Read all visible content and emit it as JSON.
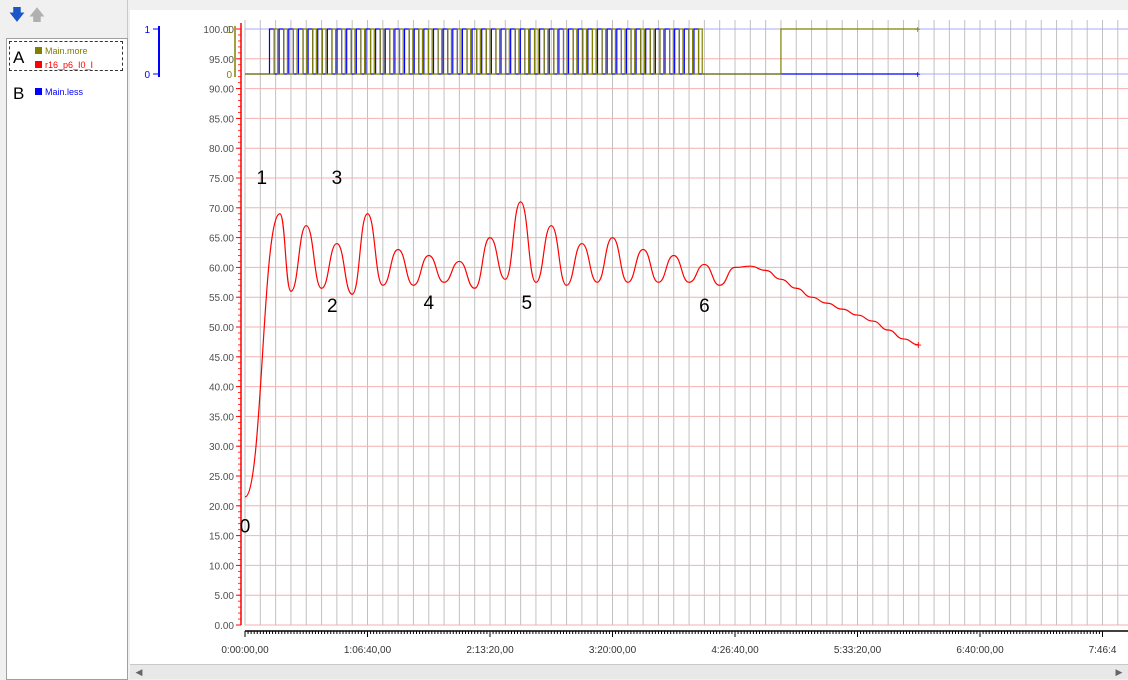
{
  "legend": {
    "items": [
      {
        "label": "Main.more",
        "color": "#808000"
      },
      {
        "label": "r16_p6_I0_I",
        "color": "#ff0000"
      },
      {
        "label": "Main.less",
        "color": "#0000ff"
      }
    ],
    "tag_a": "A",
    "tag_b": "B",
    "icons": [
      "arrow-down-icon",
      "arrow-up-icon"
    ]
  },
  "chart_data": {
    "type": "line",
    "digital_axis": {
      "ticks": [
        "0",
        "1"
      ],
      "colors": [
        "#0000ff",
        "#808000"
      ]
    },
    "y_axis": {
      "ylim": [
        0,
        100
      ],
      "step": 5,
      "color": "#ff0000"
    },
    "y_top": {
      "ticks": [
        "90.00",
        "95.00",
        "100.00"
      ]
    },
    "x_axis": {
      "tick_labels": [
        "0:00:00,00",
        "1:06:40,00",
        "2:13:20,00",
        "3:20:00,00",
        "4:26:40,00",
        "5:33:20,00",
        "6:40:00,00",
        "7:46:4"
      ],
      "tick_values_sec": [
        0,
        4000,
        8000,
        12000,
        16000,
        20000,
        24000,
        28000
      ],
      "xlim_sec": [
        0,
        28000
      ]
    },
    "series": [
      {
        "name": "r16_p6_I0_I",
        "color": "#ff0000",
        "x_sec": [
          0,
          1140,
          1500,
          2000,
          2500,
          3000,
          3500,
          4000,
          4500,
          5000,
          5500,
          6000,
          6500,
          7000,
          7500,
          8000,
          8500,
          9000,
          9500,
          10000,
          10500,
          11000,
          11500,
          12000,
          12500,
          13000,
          13500,
          14000,
          14500,
          15000,
          15500,
          16000,
          16500,
          17000,
          17500,
          18000,
          18500,
          19000,
          19500,
          20000,
          20500,
          21000,
          21500,
          22000
        ],
        "values": [
          21.5,
          69.0,
          56.0,
          67.0,
          56.5,
          64.0,
          55.5,
          69.0,
          57.0,
          63.0,
          57.0,
          62.0,
          57.5,
          61.0,
          56.5,
          65.0,
          58.0,
          71.0,
          57.5,
          67.0,
          57.0,
          64.0,
          57.5,
          65.0,
          57.5,
          63.0,
          57.5,
          62.0,
          57.5,
          60.5,
          57.0,
          60.0,
          60.2,
          59.5,
          58.0,
          56.5,
          55.0,
          54.0,
          53.0,
          52.0,
          51.0,
          49.5,
          48.0,
          47.0
        ]
      },
      {
        "name": "Main.more",
        "color": "#808000",
        "type": "step",
        "values": [
          0,
          1
        ]
      },
      {
        "name": "Main.less",
        "color": "#0000ff",
        "type": "step",
        "values": [
          0,
          1
        ]
      }
    ],
    "annotations": [
      {
        "label": "0",
        "x_sec": 0,
        "y": 15.5
      },
      {
        "label": "1",
        "x_sec": 550,
        "y": 74.0
      },
      {
        "label": "2",
        "x_sec": 2850,
        "y": 52.5
      },
      {
        "label": "3",
        "x_sec": 3000,
        "y": 74.0
      },
      {
        "label": "4",
        "x_sec": 6000,
        "y": 53.0
      },
      {
        "label": "5",
        "x_sec": 9200,
        "y": 53.0
      },
      {
        "label": "6",
        "x_sec": 15000,
        "y": 52.5
      }
    ],
    "grid": true
  }
}
